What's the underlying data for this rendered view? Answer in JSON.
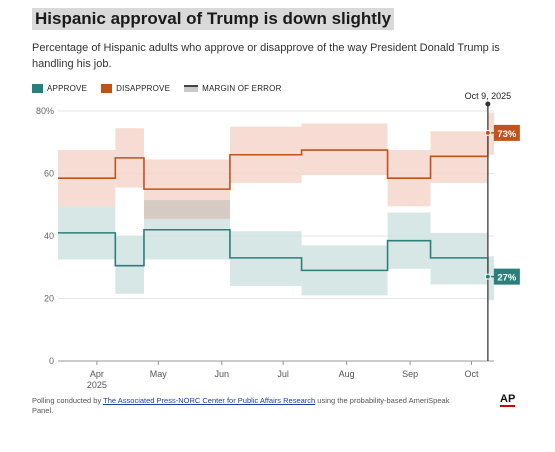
{
  "title": "Hispanic approval of Trump is down slightly",
  "subtitle": "Percentage of Hispanic adults who approve or disapprove of the way President Donald Trump is handling his job.",
  "legend": {
    "approve": "APPROVE",
    "disapprove": "DISAPPROVE",
    "moe": "MARGIN OF ERROR"
  },
  "colors": {
    "approve": "#2a7f7b",
    "approve_band": "#cfe3e2",
    "disapprove": "#c0531d",
    "disapprove_band": "#f4d6ca",
    "overlap": "#d6cbc4"
  },
  "footer": {
    "prefix": "Polling conducted by ",
    "link": "The Associated Press-NORC Center for Public Affairs Research",
    "suffix": " using the probability-based AmeriSpeak Panel."
  },
  "logo": "AP",
  "chart_data": {
    "type": "line",
    "xlabel": "",
    "ylabel": "",
    "ylim": [
      0,
      80
    ],
    "yticks": [
      0,
      20,
      40,
      60,
      80
    ],
    "ytick_labels": [
      "0",
      "20",
      "40",
      "60",
      "80%"
    ],
    "xtick_labels": [
      "Apr",
      "May",
      "Jun",
      "Jul",
      "Aug",
      "Sep",
      "Oct"
    ],
    "xtick_year": "2025",
    "date_range": [
      "2025-03-13",
      "2025-10-12"
    ],
    "xtick_dates": [
      "2025-04-01",
      "2025-05-01",
      "2025-06-01",
      "2025-07-01",
      "2025-08-01",
      "2025-09-01",
      "2025-10-01"
    ],
    "current_marker": {
      "label": "Oct 9, 2025",
      "date": "2025-10-09"
    },
    "grid": true,
    "series": [
      {
        "name": "APPROVE",
        "end_label": "27%",
        "segments": [
          {
            "start": "2025-03-13",
            "end": "2025-04-10",
            "value": 41,
            "low": 32.5,
            "high": 49.5
          },
          {
            "start": "2025-04-10",
            "end": "2025-04-24",
            "value": 30.5,
            "low": 21.5,
            "high": 40
          },
          {
            "start": "2025-04-24",
            "end": "2025-06-05",
            "value": 42,
            "low": 32.5,
            "high": 51.5
          },
          {
            "start": "2025-06-05",
            "end": "2025-07-10",
            "value": 33,
            "low": 24,
            "high": 41.5
          },
          {
            "start": "2025-07-10",
            "end": "2025-08-21",
            "value": 29,
            "low": 21,
            "high": 37
          },
          {
            "start": "2025-08-21",
            "end": "2025-09-11",
            "value": 38.5,
            "low": 29.5,
            "high": 47.5
          },
          {
            "start": "2025-09-11",
            "end": "2025-10-09",
            "value": 33,
            "low": 24.5,
            "high": 41
          },
          {
            "start": "2025-10-09",
            "end": "2025-10-12",
            "value": 27,
            "low": 19.5,
            "high": 33.5
          }
        ]
      },
      {
        "name": "DISAPPROVE",
        "end_label": "73%",
        "segments": [
          {
            "start": "2025-03-13",
            "end": "2025-04-10",
            "value": 58.5,
            "low": 49.5,
            "high": 67.5
          },
          {
            "start": "2025-04-10",
            "end": "2025-04-24",
            "value": 65,
            "low": 55.5,
            "high": 74.5
          },
          {
            "start": "2025-04-24",
            "end": "2025-06-05",
            "value": 55,
            "low": 45.5,
            "high": 64.5
          },
          {
            "start": "2025-06-05",
            "end": "2025-07-10",
            "value": 66,
            "low": 57,
            "high": 75
          },
          {
            "start": "2025-07-10",
            "end": "2025-08-21",
            "value": 67.5,
            "low": 59.5,
            "high": 76
          },
          {
            "start": "2025-08-21",
            "end": "2025-09-11",
            "value": 58.5,
            "low": 49.5,
            "high": 67.5
          },
          {
            "start": "2025-09-11",
            "end": "2025-10-09",
            "value": 65.5,
            "low": 57,
            "high": 73.5
          },
          {
            "start": "2025-10-09",
            "end": "2025-10-12",
            "value": 73,
            "low": 66,
            "high": 79.5
          }
        ]
      }
    ]
  }
}
